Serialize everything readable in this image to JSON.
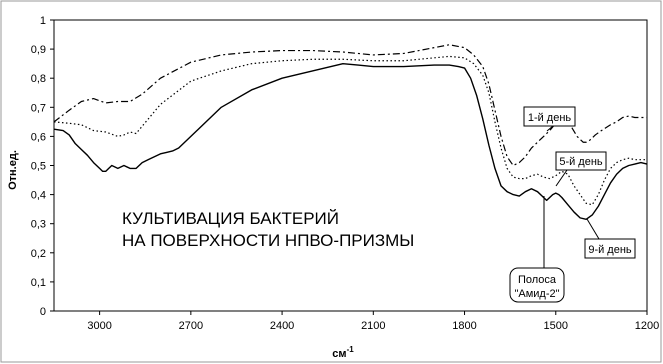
{
  "chart_data": {
    "type": "line",
    "xlabel": "см",
    "xlabel_sup": "-1",
    "ylabel": "Отн.ед.",
    "xlim": [
      3150,
      1200
    ],
    "ylim": [
      0,
      1
    ],
    "x_reversed": true,
    "xticks": [
      3000,
      2700,
      2400,
      2100,
      1800,
      1500,
      1200
    ],
    "yticks": [
      0,
      0.1,
      0.2,
      0.3,
      0.4,
      0.5,
      0.6,
      0.7,
      0.8,
      0.9,
      1
    ],
    "ytick_labels": [
      "0",
      "0,1",
      "0,2",
      "0,3",
      "0,4",
      "0,5",
      "0,6",
      "0,7",
      "0,8",
      "0,9",
      "1"
    ],
    "grid": false,
    "series": [
      {
        "name": "1-й день",
        "style": "dashdot",
        "color": "#000000",
        "x": [
          3150,
          3100,
          3060,
          3020,
          2980,
          2940,
          2900,
          2860,
          2800,
          2700,
          2600,
          2500,
          2400,
          2300,
          2200,
          2100,
          2000,
          1900,
          1850,
          1800,
          1770,
          1740,
          1720,
          1700,
          1680,
          1660,
          1640,
          1620,
          1600,
          1580,
          1560,
          1540,
          1520,
          1500,
          1480,
          1470,
          1450,
          1430,
          1410,
          1400,
          1390,
          1370,
          1350,
          1320,
          1300,
          1280,
          1260,
          1240,
          1220,
          1200
        ],
        "y": [
          0.65,
          0.69,
          0.72,
          0.73,
          0.715,
          0.72,
          0.72,
          0.745,
          0.8,
          0.855,
          0.88,
          0.89,
          0.895,
          0.895,
          0.89,
          0.88,
          0.885,
          0.905,
          0.915,
          0.905,
          0.88,
          0.84,
          0.78,
          0.69,
          0.6,
          0.53,
          0.5,
          0.51,
          0.53,
          0.56,
          0.58,
          0.6,
          0.62,
          0.645,
          0.66,
          0.655,
          0.635,
          0.6,
          0.58,
          0.58,
          0.585,
          0.605,
          0.62,
          0.64,
          0.65,
          0.665,
          0.67,
          0.665,
          0.665,
          0.665
        ]
      },
      {
        "name": "5-й день",
        "style": "dotted",
        "color": "#000000",
        "x": [
          3150,
          3100,
          3060,
          3020,
          2980,
          2940,
          2920,
          2900,
          2880,
          2860,
          2800,
          2700,
          2600,
          2500,
          2400,
          2300,
          2200,
          2100,
          2000,
          1900,
          1850,
          1800,
          1770,
          1740,
          1720,
          1700,
          1680,
          1660,
          1640,
          1620,
          1600,
          1580,
          1560,
          1540,
          1520,
          1500,
          1480,
          1460,
          1440,
          1420,
          1400,
          1380,
          1360,
          1340,
          1320,
          1300,
          1280,
          1260,
          1240,
          1220,
          1200
        ],
        "y": [
          0.65,
          0.645,
          0.64,
          0.62,
          0.615,
          0.6,
          0.605,
          0.615,
          0.61,
          0.635,
          0.71,
          0.79,
          0.825,
          0.85,
          0.86,
          0.865,
          0.865,
          0.86,
          0.86,
          0.87,
          0.875,
          0.87,
          0.85,
          0.81,
          0.75,
          0.65,
          0.56,
          0.49,
          0.46,
          0.455,
          0.455,
          0.465,
          0.47,
          0.46,
          0.455,
          0.465,
          0.48,
          0.47,
          0.43,
          0.4,
          0.37,
          0.365,
          0.4,
          0.45,
          0.49,
          0.51,
          0.52,
          0.525,
          0.52,
          0.52,
          0.52
        ]
      },
      {
        "name": "9-й день",
        "style": "solid",
        "color": "#000000",
        "x": [
          3150,
          3120,
          3100,
          3080,
          3060,
          3040,
          3020,
          3000,
          2990,
          2980,
          2970,
          2960,
          2940,
          2920,
          2900,
          2880,
          2860,
          2840,
          2820,
          2800,
          2780,
          2760,
          2740,
          2700,
          2600,
          2500,
          2400,
          2300,
          2200,
          2150,
          2100,
          2000,
          1900,
          1850,
          1820,
          1800,
          1780,
          1760,
          1740,
          1720,
          1700,
          1680,
          1660,
          1640,
          1620,
          1600,
          1580,
          1560,
          1540,
          1530,
          1520,
          1510,
          1500,
          1490,
          1480,
          1460,
          1440,
          1420,
          1400,
          1380,
          1360,
          1340,
          1320,
          1300,
          1280,
          1260,
          1240,
          1220,
          1200
        ],
        "y": [
          0.625,
          0.62,
          0.605,
          0.575,
          0.555,
          0.535,
          0.51,
          0.49,
          0.48,
          0.48,
          0.49,
          0.5,
          0.49,
          0.5,
          0.49,
          0.49,
          0.51,
          0.52,
          0.53,
          0.54,
          0.545,
          0.55,
          0.56,
          0.6,
          0.7,
          0.76,
          0.8,
          0.825,
          0.85,
          0.845,
          0.84,
          0.84,
          0.845,
          0.845,
          0.84,
          0.835,
          0.8,
          0.74,
          0.66,
          0.57,
          0.49,
          0.43,
          0.41,
          0.4,
          0.395,
          0.41,
          0.42,
          0.41,
          0.39,
          0.38,
          0.39,
          0.4,
          0.405,
          0.4,
          0.39,
          0.365,
          0.34,
          0.32,
          0.315,
          0.33,
          0.36,
          0.4,
          0.44,
          0.47,
          0.49,
          0.5,
          0.505,
          0.51,
          0.505
        ]
      }
    ],
    "annotations": {
      "main_text_line1": "КУЛЬТИВАЦИЯ БАКТЕРИЙ",
      "main_text_line2": "НА ПОВЕРХНОСТИ НПВО-ПРИЗМЫ",
      "callout_day1": "1-й день",
      "callout_day5": "5-й день",
      "callout_day9": "9-й день",
      "callout_amide_line1": "Полоса",
      "callout_amide_line2": "\"Амид-2\""
    }
  }
}
